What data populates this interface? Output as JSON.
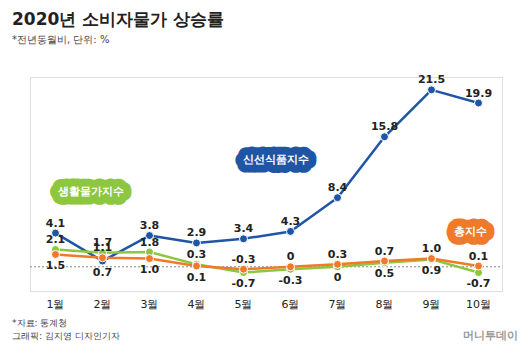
{
  "chart_data": {
    "type": "line",
    "title": "2020년 소비자물가 상승률",
    "subtitle": "*전년동월비, 단위: %",
    "source": "*자료: 통계청",
    "credit": "그래픽: 김지영 디자인기자",
    "publisher": "머니투데이",
    "categories": [
      "1월",
      "2월",
      "3월",
      "4월",
      "5월",
      "6월",
      "7월",
      "8월",
      "9월",
      "10월"
    ],
    "series": [
      {
        "name": "신선식품지수",
        "color": "#1f55a5",
        "marker": "circle",
        "values": [
          4.1,
          0.7,
          3.8,
          2.9,
          3.4,
          4.3,
          8.4,
          15.8,
          21.5,
          19.9
        ],
        "value_labels": [
          "4.1",
          "0.7",
          "3.8",
          "2.9",
          "3.4",
          "4.3",
          "8.4",
          "15.8",
          "21.5",
          "19.9"
        ]
      },
      {
        "name": "생활물가지수",
        "color": "#8dc63f",
        "marker": "circle",
        "values": [
          2.1,
          1.7,
          1.8,
          0.3,
          -0.7,
          -0.3,
          0,
          0.5,
          0.9,
          -0.7
        ],
        "value_labels": [
          "2.1",
          "1.7",
          "1.8",
          "0.3",
          "-0.7",
          "-0.3",
          "0",
          "0.5",
          "0.9",
          "-0.7"
        ]
      },
      {
        "name": "총지수",
        "color": "#f07a2a",
        "marker": "circle",
        "values": [
          1.5,
          1.1,
          1.0,
          0.1,
          -0.3,
          0,
          0.3,
          0.7,
          1.0,
          0.1
        ],
        "value_labels": [
          "1.5",
          "1.1",
          "1.0",
          "0.1",
          "-0.3",
          "0",
          "0.3",
          "0.7",
          "1.0",
          "0.1"
        ]
      }
    ],
    "ylim": [
      -3,
      23
    ],
    "yticks": [
      0
    ],
    "grid": true,
    "tick_labels": "x",
    "data_labels": true
  }
}
